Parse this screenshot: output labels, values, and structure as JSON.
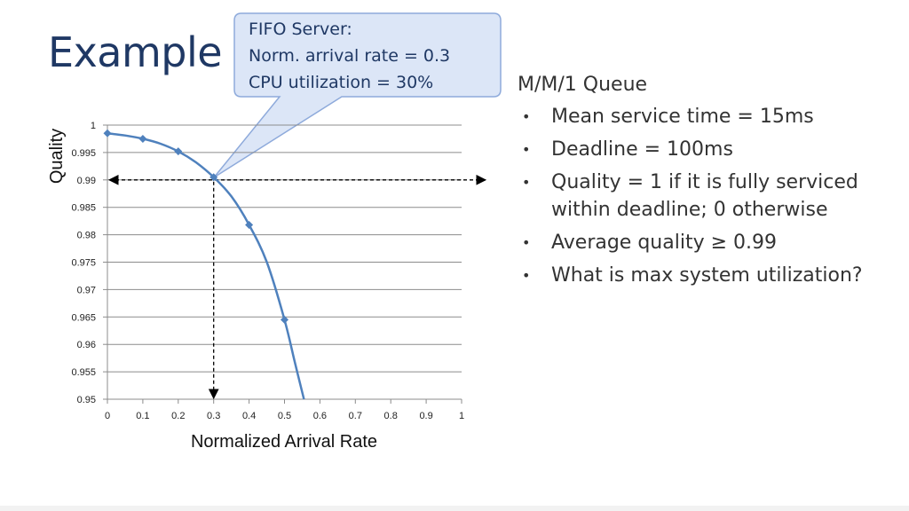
{
  "slide": {
    "title": "Example"
  },
  "callout": {
    "lines": [
      "FIFO Server:",
      "Norm. arrival rate = 0.3",
      "CPU utilization = 30%"
    ]
  },
  "notes": {
    "heading": "M/M/1 Queue",
    "bullets": [
      "Mean service time = 15ms",
      "Deadline = 100ms",
      "Quality = 1 if it is fully serviced within deadline; 0 otherwise",
      "Average quality ≥ 0.99",
      "What is max system utilization?"
    ]
  },
  "colors": {
    "series": "#4f81bd",
    "title": "#1f3864",
    "callout_fill": "#dce6f7",
    "callout_border": "#8eaadb"
  },
  "chart_data": {
    "type": "line",
    "xlabel": "Normalized Arrival Rate",
    "ylabel": "Quality",
    "xlim": [
      0,
      1
    ],
    "ylim": [
      0.95,
      1
    ],
    "x_ticks": [
      "0",
      "0.1",
      "0.2",
      "0.3",
      "0.4",
      "0.5",
      "0.6",
      "0.7",
      "0.8",
      "0.9",
      "1"
    ],
    "y_ticks": [
      "0.95",
      "0.955",
      "0.96",
      "0.965",
      "0.97",
      "0.975",
      "0.98",
      "0.985",
      "0.99",
      "0.995",
      "1"
    ],
    "grid": true,
    "series": [
      {
        "markers": [
          [
            0,
            0.9985
          ],
          [
            0.1,
            0.9975
          ],
          [
            0.2,
            0.9952
          ],
          [
            0.3,
            0.9905
          ],
          [
            0.4,
            0.9818
          ],
          [
            0.5,
            0.9645
          ]
        ],
        "curve": [
          [
            0,
            0.9985
          ],
          [
            0.05,
            0.9981
          ],
          [
            0.1,
            0.9975
          ],
          [
            0.15,
            0.9966
          ],
          [
            0.2,
            0.9952
          ],
          [
            0.25,
            0.9932
          ],
          [
            0.3,
            0.9905
          ],
          [
            0.35,
            0.987
          ],
          [
            0.4,
            0.9818
          ],
          [
            0.45,
            0.975
          ],
          [
            0.5,
            0.9645
          ],
          [
            0.53,
            0.9565
          ],
          [
            0.555,
            0.95
          ]
        ]
      }
    ],
    "guide_lines": {
      "horizontal_y": 0.99,
      "vertical_x": 0.3
    }
  }
}
